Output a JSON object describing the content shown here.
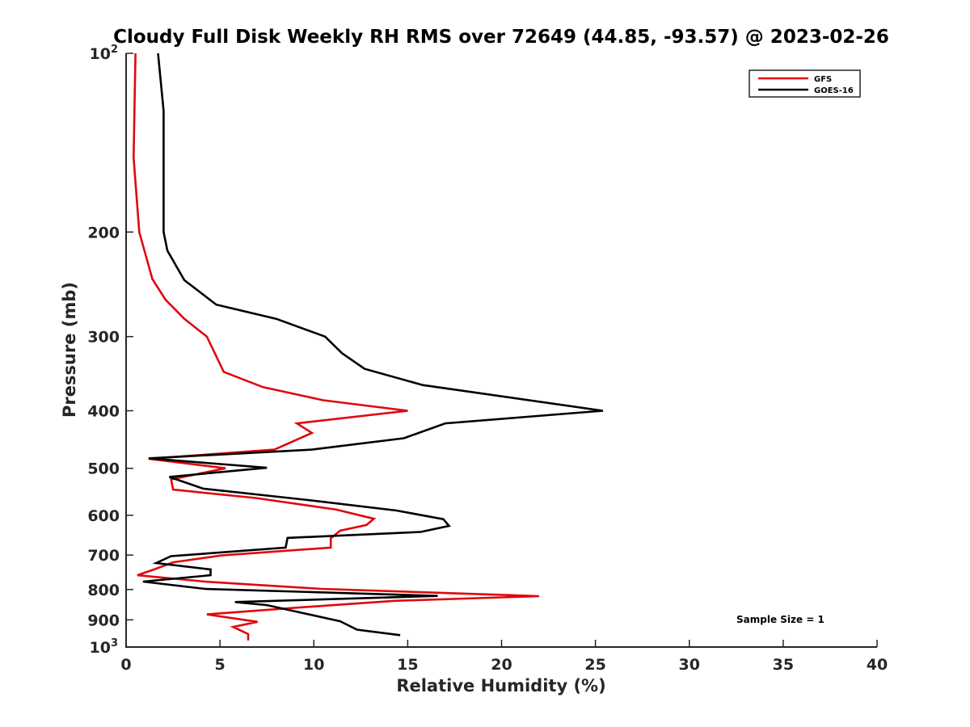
{
  "chart_data": {
    "type": "line",
    "title": "Cloudy Full Disk Weekly RH RMS over 72649 (44.85, -93.57) @ 2023-02-26",
    "xlabel": "Relative Humidity (%)",
    "ylabel": "Pressure (mb)",
    "xlim": [
      0,
      40
    ],
    "ylim": [
      100,
      1000
    ],
    "y_scale": "log",
    "y_reversed": true,
    "x_ticks": [
      0,
      5,
      10,
      15,
      20,
      25,
      30,
      35,
      40
    ],
    "x_tick_labels": [
      "0",
      "5",
      "10",
      "15",
      "20",
      "25",
      "30",
      "35",
      "40"
    ],
    "y_ticks": [
      {
        "value": 100,
        "label": "10",
        "sup": "2"
      },
      {
        "value": 200,
        "label": "200",
        "sup": ""
      },
      {
        "value": 300,
        "label": "300",
        "sup": ""
      },
      {
        "value": 400,
        "label": "400",
        "sup": ""
      },
      {
        "value": 500,
        "label": "500",
        "sup": ""
      },
      {
        "value": 600,
        "label": "600",
        "sup": ""
      },
      {
        "value": 700,
        "label": "700",
        "sup": ""
      },
      {
        "value": 800,
        "label": "800",
        "sup": ""
      },
      {
        "value": 900,
        "label": "900",
        "sup": ""
      },
      {
        "value": 1000,
        "label": "10",
        "sup": "3"
      }
    ],
    "grid": false,
    "legend_position": "top-right",
    "annotation": "Sample Size = 1",
    "series": [
      {
        "name": "GFS",
        "color": "#e0080c",
        "points": [
          [
            0.5,
            100
          ],
          [
            0.4,
            150
          ],
          [
            0.7,
            200
          ],
          [
            1.4,
            240
          ],
          [
            2.1,
            260
          ],
          [
            3.1,
            280
          ],
          [
            4.3,
            300
          ],
          [
            5.2,
            344
          ],
          [
            7.3,
            365
          ],
          [
            10.5,
            384
          ],
          [
            15.0,
            400
          ],
          [
            9.1,
            420
          ],
          [
            9.9,
            436
          ],
          [
            7.9,
            465
          ],
          [
            1.2,
            482
          ],
          [
            5.3,
            500
          ],
          [
            2.4,
            522
          ],
          [
            2.5,
            543
          ],
          [
            6.9,
            561
          ],
          [
            11.2,
            587
          ],
          [
            13.2,
            608
          ],
          [
            12.8,
            623
          ],
          [
            11.4,
            637
          ],
          [
            10.9,
            656
          ],
          [
            10.9,
            680
          ],
          [
            5.1,
            701
          ],
          [
            2.5,
            720
          ],
          [
            1.5,
            740
          ],
          [
            0.6,
            757
          ],
          [
            4.2,
            776
          ],
          [
            10.4,
            798
          ],
          [
            22.0,
            821
          ],
          [
            14.3,
            836
          ],
          [
            8.7,
            860
          ],
          [
            4.3,
            881
          ],
          [
            7.0,
            907
          ],
          [
            5.7,
            925
          ],
          [
            6.5,
            951
          ],
          [
            6.5,
            975
          ]
        ]
      },
      {
        "name": "GOES-16",
        "color": "#000000",
        "points": [
          [
            1.7,
            100
          ],
          [
            2.0,
            125
          ],
          [
            2.0,
            200
          ],
          [
            2.2,
            215
          ],
          [
            3.1,
            241
          ],
          [
            4.8,
            265
          ],
          [
            8.0,
            280
          ],
          [
            10.6,
            300
          ],
          [
            11.5,
            320
          ],
          [
            12.7,
            340
          ],
          [
            15.8,
            362
          ],
          [
            25.4,
            400
          ],
          [
            17.0,
            420
          ],
          [
            14.8,
            445
          ],
          [
            9.9,
            465
          ],
          [
            1.2,
            481
          ],
          [
            7.5,
            499
          ],
          [
            2.3,
            517
          ],
          [
            4.1,
            541
          ],
          [
            9.8,
            566
          ],
          [
            14.4,
            589
          ],
          [
            16.9,
            609
          ],
          [
            17.2,
            625
          ],
          [
            15.7,
            640
          ],
          [
            8.6,
            655
          ],
          [
            8.5,
            680
          ],
          [
            2.4,
            703
          ],
          [
            1.6,
            722
          ],
          [
            4.5,
            740
          ],
          [
            4.5,
            757
          ],
          [
            0.9,
            776
          ],
          [
            4.2,
            798
          ],
          [
            16.6,
            820
          ],
          [
            5.8,
            840
          ],
          [
            7.5,
            850
          ],
          [
            11.4,
            905
          ],
          [
            12.3,
            935
          ],
          [
            14.6,
            955
          ]
        ]
      }
    ]
  }
}
